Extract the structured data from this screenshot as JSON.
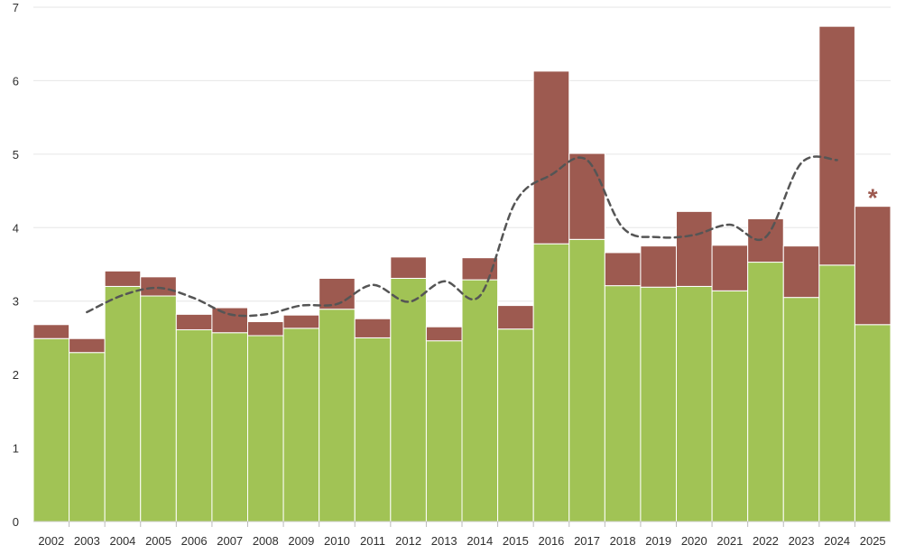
{
  "chart_data": {
    "type": "bar",
    "stacked": true,
    "categories": [
      "2002",
      "2003",
      "2004",
      "2005",
      "2006",
      "2007",
      "2008",
      "2009",
      "2010",
      "2011",
      "2012",
      "2013",
      "2014",
      "2015",
      "2016",
      "2017",
      "2018",
      "2019",
      "2020",
      "2021",
      "2022",
      "2023",
      "2024",
      "2025"
    ],
    "series": [
      {
        "color": "#a1c355",
        "values": [
          2.49,
          2.3,
          3.2,
          3.07,
          2.61,
          2.57,
          2.53,
          2.63,
          2.89,
          2.5,
          3.31,
          2.46,
          3.29,
          2.62,
          3.78,
          3.84,
          3.21,
          3.19,
          3.2,
          3.14,
          3.53,
          3.05,
          3.49,
          2.68
        ]
      },
      {
        "color": "#9d5a50",
        "values": [
          0.19,
          0.19,
          0.21,
          0.26,
          0.21,
          0.34,
          0.19,
          0.18,
          0.42,
          0.26,
          0.29,
          0.19,
          0.3,
          0.32,
          2.35,
          1.17,
          0.45,
          0.56,
          1.02,
          0.62,
          0.59,
          0.7,
          3.25,
          1.61
        ]
      }
    ],
    "trend_line": {
      "style": "dashed",
      "color": "#555555",
      "x": [
        "2003",
        "2004",
        "2005",
        "2006",
        "2007",
        "2008",
        "2009",
        "2010",
        "2011",
        "2012",
        "2013",
        "2014",
        "2015",
        "2016",
        "2017",
        "2018",
        "2019",
        "2020",
        "2021",
        "2022",
        "2023",
        "2024"
      ],
      "values": [
        2.85,
        3.08,
        3.18,
        3.04,
        2.82,
        2.82,
        2.94,
        2.96,
        3.22,
        2.99,
        3.27,
        3.07,
        4.35,
        4.72,
        4.92,
        4.0,
        3.87,
        3.9,
        4.04,
        3.87,
        4.88,
        4.92
      ]
    },
    "annotations": [
      {
        "category": "2025",
        "text": "*",
        "color": "#9d5a50"
      }
    ],
    "xlabel": "",
    "ylabel": "",
    "ylim": [
      0,
      7
    ],
    "yticks": [
      0,
      1,
      2,
      3,
      4,
      5,
      6,
      7
    ],
    "grid": true,
    "legend": "none"
  }
}
